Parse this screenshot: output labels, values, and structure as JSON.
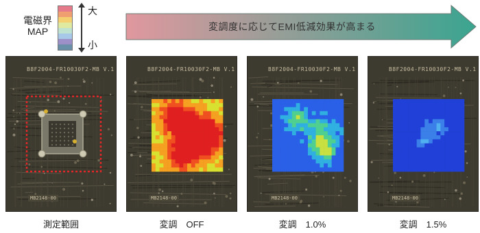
{
  "legend": {
    "title_line1": "電磁界",
    "title_line2": "MAP",
    "scale_colors": [
      "#e47a8a",
      "#f0a070",
      "#f4d070",
      "#dfe9a0",
      "#bfe3d0",
      "#a8c8e8",
      "#9d8fc8",
      "#6a8fa8"
    ],
    "high_label": "大",
    "low_label": "小"
  },
  "banner": {
    "text": "変調度に応じてEMI低減効果が高まる",
    "gradient_start": "#e0989e",
    "gradient_end": "#3aa590"
  },
  "panels": [
    {
      "caption": "測定範囲",
      "board_text": "B8F2004-FR10030F2-MB V.1",
      "bottom_text": "MB2148-00",
      "mode": "outline"
    },
    {
      "caption": "変調　OFF",
      "board_text": "B8F2004-FR10030F2-MB V.1",
      "bottom_text": "MB2148-00",
      "mode": "hot"
    },
    {
      "caption": "変調　1.0%",
      "board_text": "B8F2004-FR10030F2-MB V.1",
      "bottom_text": "MB2148-00",
      "mode": "mid"
    },
    {
      "caption": "変調　1.5%",
      "board_text": "B8F2004-FR10030F2-MB V.1",
      "bottom_text": "MB2148-00",
      "mode": "cool"
    }
  ]
}
